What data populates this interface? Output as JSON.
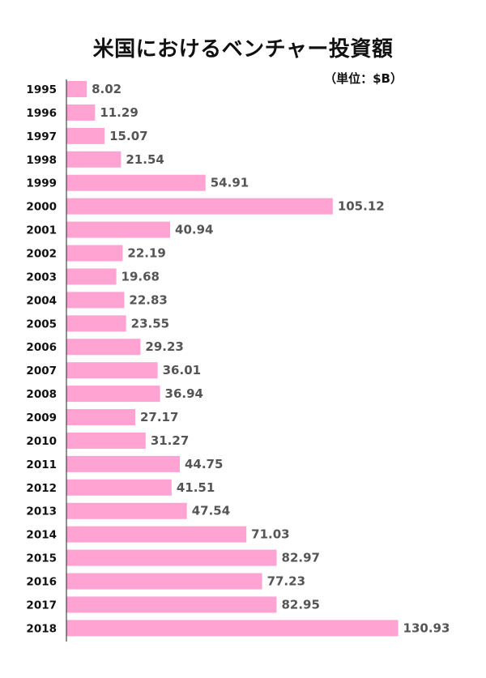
{
  "title": "米国におけるベンチャー投資額",
  "unit": "（単位：$B）",
  "colors": {
    "bar": "#ffa3d2",
    "axis": "#222222",
    "value_text": "#555555",
    "year_text": "#111111"
  },
  "chart_data": {
    "type": "bar",
    "orientation": "horizontal",
    "title": "米国におけるベンチャー投資額",
    "unit": "（単位：$B）",
    "categories": [
      "1995",
      "1996",
      "1997",
      "1998",
      "1999",
      "2000",
      "2001",
      "2002",
      "2003",
      "2004",
      "2005",
      "2006",
      "2007",
      "2008",
      "2009",
      "2010",
      "2011",
      "2012",
      "2013",
      "2014",
      "2015",
      "2016",
      "2017",
      "2018"
    ],
    "values": [
      8.02,
      11.29,
      15.07,
      21.54,
      54.91,
      105.12,
      40.94,
      22.19,
      19.68,
      22.83,
      23.55,
      29.23,
      36.01,
      36.94,
      27.17,
      31.27,
      44.75,
      41.51,
      47.54,
      71.03,
      82.97,
      77.23,
      82.95,
      130.93
    ],
    "value_labels": [
      "8.02",
      "11.29",
      "15.07",
      "21.54",
      "54.91",
      "105.12",
      "40.94",
      "22.19",
      "19.68",
      "22.83",
      "23.55",
      "29.23",
      "36.01",
      "36.94",
      "27.17",
      "31.27",
      "44.75",
      "41.51",
      "47.54",
      "71.03",
      "82.97",
      "77.23",
      "82.95",
      "130.93"
    ],
    "data_labels": true,
    "grid": false,
    "legend": "none"
  }
}
